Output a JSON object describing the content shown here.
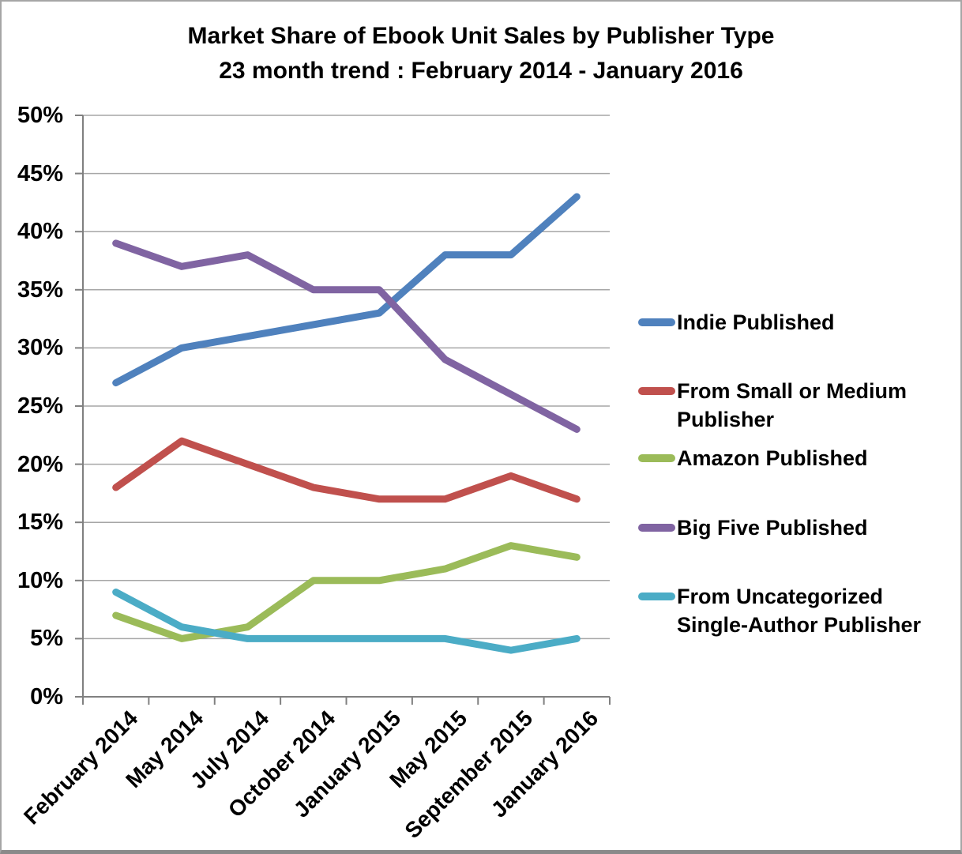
{
  "chart_data": {
    "type": "line",
    "title": "Market Share of Ebook Unit Sales by Publisher Type",
    "subtitle": "23 month trend : February 2014 - January 2016",
    "categories": [
      "February 2014",
      "May 2014",
      "July 2014",
      "October 2014",
      "January 2015",
      "May 2015",
      "September 2015",
      "January 2016"
    ],
    "series": [
      {
        "name": "Indie Published",
        "color": "#4F81BD",
        "values": [
          27,
          30,
          31,
          32,
          33,
          38,
          38,
          43
        ]
      },
      {
        "name": "From Small or Medium Publisher",
        "color": "#C0504D",
        "values": [
          18,
          22,
          20,
          18,
          17,
          17,
          19,
          17
        ]
      },
      {
        "name": "Amazon Published",
        "color": "#9BBB59",
        "values": [
          7,
          5,
          6,
          10,
          10,
          11,
          13,
          12
        ]
      },
      {
        "name": "Big Five Published",
        "color": "#8064A2",
        "values": [
          39,
          37,
          38,
          35,
          35,
          29,
          26,
          23
        ]
      },
      {
        "name": "From Uncategorized Single-Author Publisher",
        "color": "#4BACC6",
        "values": [
          9,
          6,
          5,
          5,
          5,
          5,
          4,
          5
        ]
      }
    ],
    "ylim": [
      0,
      50
    ],
    "y_tick_step": 5,
    "y_tick_suffix": "%",
    "grid": true,
    "legend_position": "right",
    "gridline_color": "#A6A6A6",
    "axis_color": "#808080"
  }
}
